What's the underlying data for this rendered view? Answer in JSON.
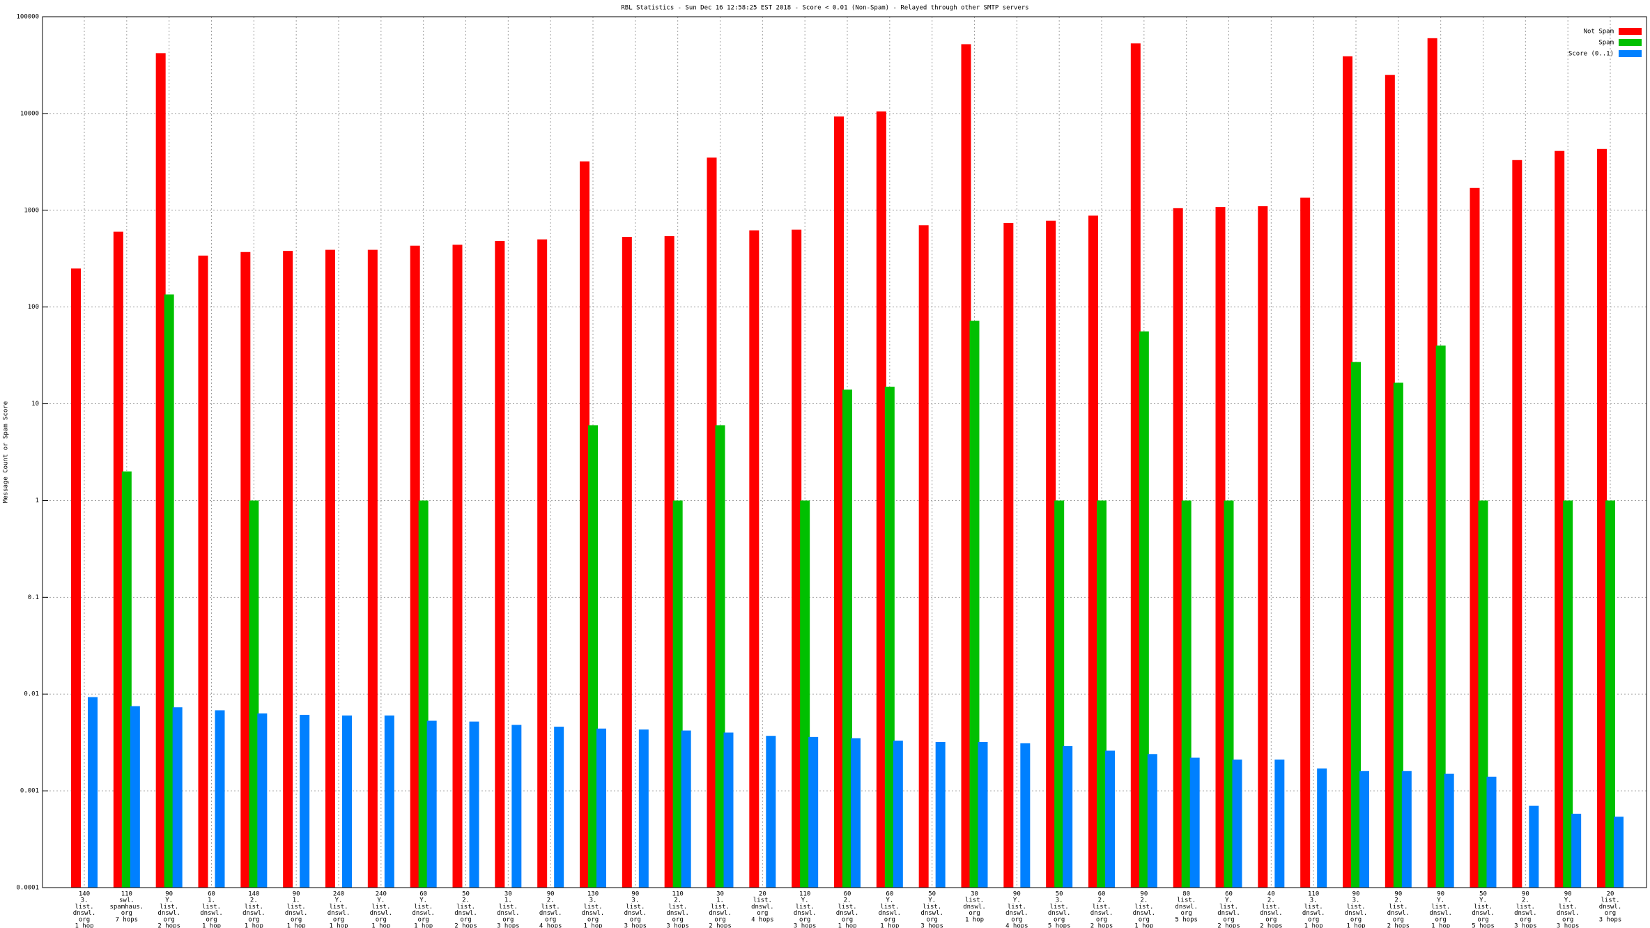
{
  "chart_data": {
    "type": "bar",
    "title": "RBL Statistics - Sun Dec 16 12:58:25 EST 2018 - Score < 0.01 (Non-Spam) - Relayed through other SMTP servers",
    "y_label": "Message Count or Spam Score",
    "log_scale": true,
    "grid": true,
    "legend": "top-right",
    "ylim": [
      0.0001,
      100000
    ],
    "yticks": [
      0.0001,
      0.001,
      0.01,
      0.1,
      1,
      10,
      100,
      1000,
      10000,
      100000
    ],
    "categories": [
      [
        "140",
        "3.",
        "list.",
        "dnswl.",
        "org",
        "1 hop"
      ],
      [
        "110",
        "swl.",
        "spamhaus.",
        "org",
        "7 hops"
      ],
      [
        "90",
        "Y.",
        "list.",
        "dnswl.",
        "org",
        "2 hops"
      ],
      [
        "60",
        "1.",
        "list.",
        "dnswl.",
        "org",
        "1 hop"
      ],
      [
        "140",
        "2.",
        "list.",
        "dnswl.",
        "org",
        "1 hop"
      ],
      [
        "90",
        "1.",
        "list.",
        "dnswl.",
        "org",
        "1 hop"
      ],
      [
        "240",
        "Y.",
        "list.",
        "dnswl.",
        "org",
        "1 hop"
      ],
      [
        "240",
        "Y.",
        "list.",
        "dnswl.",
        "org",
        "1 hop"
      ],
      [
        "60",
        "Y.",
        "list.",
        "dnswl.",
        "org",
        "1 hop"
      ],
      [
        "50",
        "2.",
        "list.",
        "dnswl.",
        "org",
        "2 hops"
      ],
      [
        "30",
        "1.",
        "list.",
        "dnswl.",
        "org",
        "3 hops"
      ],
      [
        "90",
        "2.",
        "list.",
        "dnswl.",
        "org",
        "4 hops"
      ],
      [
        "130",
        "3.",
        "list.",
        "dnswl.",
        "org",
        "1 hop"
      ],
      [
        "90",
        "3.",
        "list.",
        "dnswl.",
        "org",
        "3 hops"
      ],
      [
        "110",
        "2.",
        "list.",
        "dnswl.",
        "org",
        "3 hops"
      ],
      [
        "30",
        "1.",
        "list.",
        "dnswl.",
        "org",
        "2 hops"
      ],
      [
        "20",
        "list.",
        "dnswl.",
        "org",
        "4 hops"
      ],
      [
        "110",
        "Y.",
        "list.",
        "dnswl.",
        "org",
        "3 hops"
      ],
      [
        "60",
        "2.",
        "list.",
        "dnswl.",
        "org",
        "1 hop"
      ],
      [
        "60",
        "Y.",
        "list.",
        "dnswl.",
        "org",
        "1 hop"
      ],
      [
        "50",
        "Y.",
        "list.",
        "dnswl.",
        "org",
        "3 hops"
      ],
      [
        "30",
        "list.",
        "dnswl.",
        "org",
        "1 hop"
      ],
      [
        "90",
        "Y.",
        "list.",
        "dnswl.",
        "org",
        "4 hops"
      ],
      [
        "50",
        "3.",
        "list.",
        "dnswl.",
        "org",
        "5 hops"
      ],
      [
        "60",
        "2.",
        "list.",
        "dnswl.",
        "org",
        "2 hops"
      ],
      [
        "90",
        "2.",
        "list.",
        "dnswl.",
        "org",
        "1 hop"
      ],
      [
        "80",
        "list.",
        "dnswl.",
        "org",
        "5 hops"
      ],
      [
        "60",
        "Y.",
        "list.",
        "dnswl.",
        "org",
        "2 hops"
      ],
      [
        "40",
        "2.",
        "list.",
        "dnswl.",
        "org",
        "2 hops"
      ],
      [
        "110",
        "3.",
        "list.",
        "dnswl.",
        "org",
        "1 hop"
      ],
      [
        "90",
        "3.",
        "list.",
        "dnswl.",
        "org",
        "1 hop"
      ],
      [
        "90",
        "2.",
        "list.",
        "dnswl.",
        "org",
        "2 hops"
      ],
      [
        "90",
        "Y.",
        "list.",
        "dnswl.",
        "org",
        "1 hop"
      ],
      [
        "50",
        "Y.",
        "list.",
        "dnswl.",
        "org",
        "5 hops"
      ],
      [
        "90",
        "2.",
        "list.",
        "dnswl.",
        "org",
        "3 hops"
      ],
      [
        "90",
        "Y.",
        "list.",
        "dnswl.",
        "org",
        "3 hops"
      ],
      [
        "20",
        "list.",
        "dnswl.",
        "org",
        "3 hops"
      ]
    ],
    "series": [
      {
        "name": "Not Spam",
        "color": "#ff0000",
        "values": [
          250,
          600,
          42000,
          340,
          370,
          380,
          390,
          390,
          430,
          440,
          480,
          500,
          3200,
          530,
          540,
          3500,
          620,
          630,
          9300,
          10500,
          700,
          52000,
          740,
          780,
          880,
          53000,
          1050,
          1080,
          1100,
          1350,
          39000,
          25000,
          60000,
          1700,
          3300,
          4100,
          4300
        ]
      },
      {
        "name": "Spam",
        "color": "#00c000",
        "values": [
          null,
          2,
          135,
          null,
          1,
          null,
          null,
          null,
          1,
          null,
          null,
          null,
          6,
          null,
          1,
          6,
          null,
          1,
          14,
          15,
          null,
          72,
          null,
          1,
          1,
          56,
          1,
          1,
          null,
          null,
          27,
          16.5,
          40,
          1,
          null,
          1,
          1
        ]
      },
      {
        "name": "Score (0..1)",
        "color": "#0080ff",
        "values": [
          0.0093,
          0.0075,
          0.0073,
          0.0068,
          0.0063,
          0.0061,
          0.006,
          0.006,
          0.0053,
          0.0052,
          0.0048,
          0.0046,
          0.0044,
          0.0043,
          0.0042,
          0.004,
          0.0037,
          0.0036,
          0.0035,
          0.0033,
          0.0032,
          0.0032,
          0.0031,
          0.0029,
          0.0026,
          0.0024,
          0.0022,
          0.0021,
          0.0021,
          0.0017,
          0.0016,
          0.0016,
          0.0015,
          0.0014,
          0.0007,
          0.00058,
          0.00054
        ]
      }
    ]
  }
}
